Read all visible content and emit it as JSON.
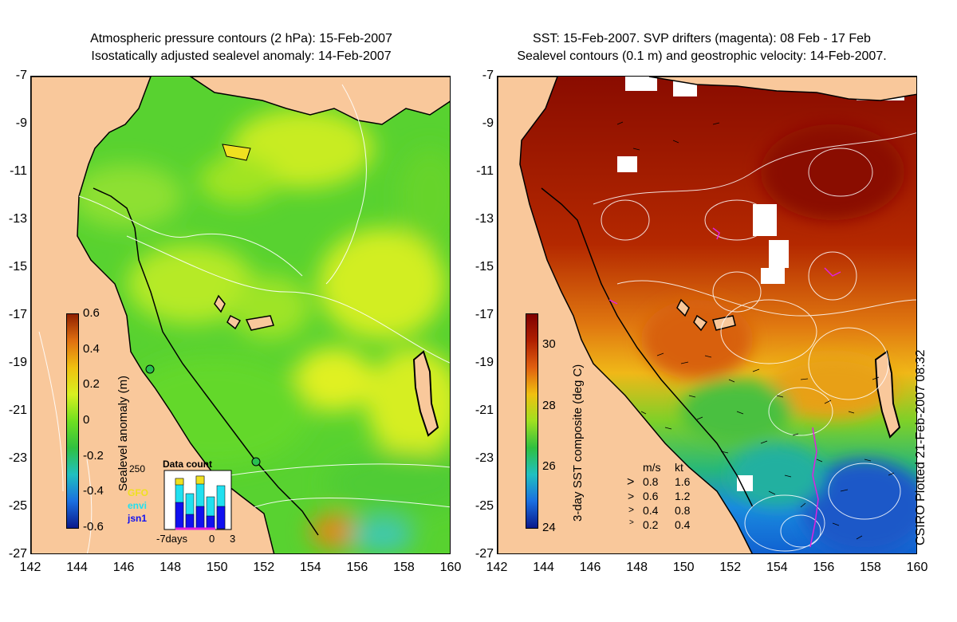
{
  "left_panel": {
    "title_line1": "Atmospheric pressure contours (2 hPa): 15-Feb-2007",
    "title_line2": "Isostatically adjusted sealevel anomaly: 14-Feb-2007",
    "colorbar_label": "Sealevel anomaly (m)",
    "colorbar_ticks": [
      "0.6",
      "0.4",
      "0.2",
      "0",
      "-0.2",
      "-0.4",
      "-0.6"
    ],
    "inset": {
      "title": "Data count",
      "ymax": "250",
      "x_labels": [
        "-7days",
        "0",
        "3"
      ],
      "satellites": [
        {
          "name": "GFO",
          "color": "#f0e020"
        },
        {
          "name": "envi",
          "color": "#20e0f0"
        },
        {
          "name": "jsn1",
          "color": "#1010f0"
        }
      ]
    }
  },
  "right_panel": {
    "title_line1": "SST: 15-Feb-2007. SVP drifters (magenta): 08 Feb - 17 Feb",
    "title_line2": "Sealevel contours (0.1 m) and geostrophic velocity: 14-Feb-2007.",
    "colorbar_label": "3-day SST composite (deg C)",
    "colorbar_ticks": [
      "30",
      "28",
      "26",
      "24"
    ],
    "velocity_legend": {
      "header_ms": "m/s",
      "header_kt": "kt",
      "rows": [
        {
          "ms": "0.8",
          "kt": "1.6"
        },
        {
          "ms": "0.6",
          "kt": "1.2"
        },
        {
          "ms": "0.4",
          "kt": "0.8"
        },
        {
          "ms": "0.2",
          "kt": "0.4"
        }
      ]
    }
  },
  "axes": {
    "y_ticks": [
      "-7",
      "-9",
      "-11",
      "-13",
      "-15",
      "-17",
      "-19",
      "-21",
      "-23",
      "-25",
      "-27"
    ],
    "x_ticks": [
      "142",
      "144",
      "146",
      "148",
      "150",
      "152",
      "154",
      "156",
      "158",
      "160"
    ]
  },
  "credit": "CSIRO Plotted 21-Feb-2007 08:32",
  "colors": {
    "land": "#f9c89b",
    "sla_scale": [
      "#0a1a8c",
      "#1a6fe0",
      "#20c0c0",
      "#30c040",
      "#70e020",
      "#d8f020",
      "#f0c010",
      "#e07010",
      "#902000"
    ],
    "sst_scale": [
      "#0a1a8c",
      "#1a6fe0",
      "#20c0c0",
      "#30c040",
      "#a0e020",
      "#f0c010",
      "#e06010",
      "#b02000",
      "#800000"
    ]
  }
}
